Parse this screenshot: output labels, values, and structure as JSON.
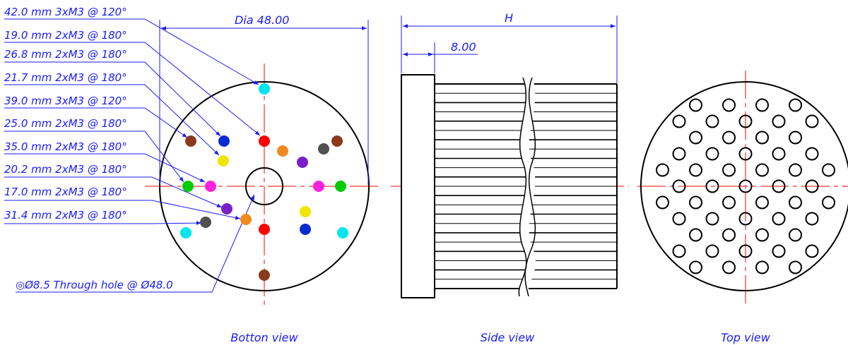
{
  "views": {
    "bottom": "Botton view",
    "side": "Side view",
    "top": "Top view"
  },
  "annotations": [
    {
      "text": "42.0 mm 3xM3 @ 120°",
      "color": "#00e5ee"
    },
    {
      "text": "19.0 mm 2xM3 @ 180°",
      "color": "#ff0000"
    },
    {
      "text": "26.8 mm 2xM3 @ 180°",
      "color": "#0a2bd4"
    },
    {
      "text": "21.7 mm 2xM3 @ 180°",
      "color": "#f0e600"
    },
    {
      "text": "39.0 mm 3xM3 @ 120°",
      "color": "#8b3a1e"
    },
    {
      "text": "25.0 mm 2xM3 @ 180°",
      "color": "#00cc00"
    },
    {
      "text": "35.0 mm 2xM3 @ 180°",
      "color": "#ff22dd"
    },
    {
      "text": "20.2 mm 2xM3 @ 180°",
      "color": "#7a1fc8"
    },
    {
      "text": "17.0 mm 2xM3 @ 180°",
      "color": "#f08a1f"
    },
    {
      "text": "31.4 mm 2xM3 @ 180°",
      "color": "#505050"
    }
  ],
  "bottom_dims": {
    "diameter": "Dia 48.00",
    "through_hole": "◎Ø8.5 Through hole @ Ø48.0"
  },
  "side_dims": {
    "height": "H",
    "flange": "8.00"
  },
  "colors": {
    "dimension": "#1a1aff",
    "centerline": "#ff0000",
    "outline": "#000000"
  }
}
